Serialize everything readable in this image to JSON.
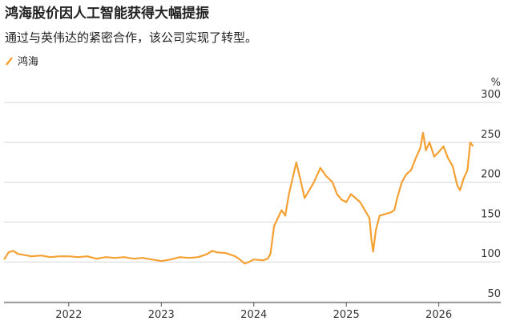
{
  "chart_data": {
    "type": "line",
    "title": "鸿海股价因人工智能获得大幅提振",
    "subtitle": "通过与英伟达的紧密合作，该公司实现了转型。",
    "y_unit": "%",
    "x": [
      2021.3,
      2021.35,
      2021.4,
      2021.45,
      2021.5,
      2021.6,
      2021.7,
      2021.8,
      2021.9,
      2022.0,
      2022.1,
      2022.2,
      2022.3,
      2022.4,
      2022.5,
      2022.6,
      2022.7,
      2022.8,
      2022.9,
      2023.0,
      2023.1,
      2023.2,
      2023.3,
      2023.4,
      2023.5,
      2023.55,
      2023.6,
      2023.7,
      2023.8,
      2023.85,
      2023.9,
      2023.95,
      2024.0,
      2024.1,
      2024.15,
      2024.18,
      2024.22,
      2024.26,
      2024.3,
      2024.34,
      2024.38,
      2024.42,
      2024.46,
      2024.5,
      2024.55,
      2024.6,
      2024.65,
      2024.72,
      2024.78,
      2024.85,
      2024.9,
      2024.95,
      2025.0,
      2025.05,
      2025.1,
      2025.15,
      2025.2,
      2025.25,
      2025.27,
      2025.29,
      2025.32,
      2025.36,
      2025.42,
      2025.48,
      2025.52,
      2025.55,
      2025.6,
      2025.65,
      2025.7,
      2025.75,
      2025.8,
      2025.83,
      2025.86,
      2025.9,
      2025.95,
      2026.0,
      2026.05,
      2026.1,
      2026.15,
      2026.2,
      2026.23,
      2026.27,
      2026.31,
      2026.34,
      2026.37
    ],
    "series": [
      {
        "name": "鸿海",
        "color": "#f5a032",
        "values": [
          103,
          112,
          114,
          110,
          109,
          107,
          108,
          106,
          107,
          107,
          106,
          107,
          104,
          106,
          105,
          106,
          104,
          105,
          103,
          101,
          103,
          106,
          105,
          106,
          110,
          114,
          112,
          111,
          107,
          103,
          98,
          100,
          103,
          102,
          104,
          110,
          145,
          155,
          165,
          158,
          185,
          205,
          225,
          205,
          180,
          190,
          200,
          218,
          208,
          200,
          185,
          178,
          175,
          185,
          180,
          175,
          165,
          155,
          130,
          113,
          140,
          158,
          160,
          162,
          165,
          180,
          200,
          210,
          215,
          230,
          243,
          262,
          240,
          250,
          232,
          238,
          245,
          230,
          220,
          196,
          190,
          205,
          215,
          250,
          245
        ]
      }
    ],
    "xlim": [
      2021.3,
      2026.67
    ],
    "xticks": [
      2022,
      2023,
      2024,
      2025,
      2026
    ],
    "ylim": [
      50,
      300
    ],
    "yticks": [
      50,
      100,
      150,
      200,
      250,
      300
    ],
    "grid": true
  }
}
